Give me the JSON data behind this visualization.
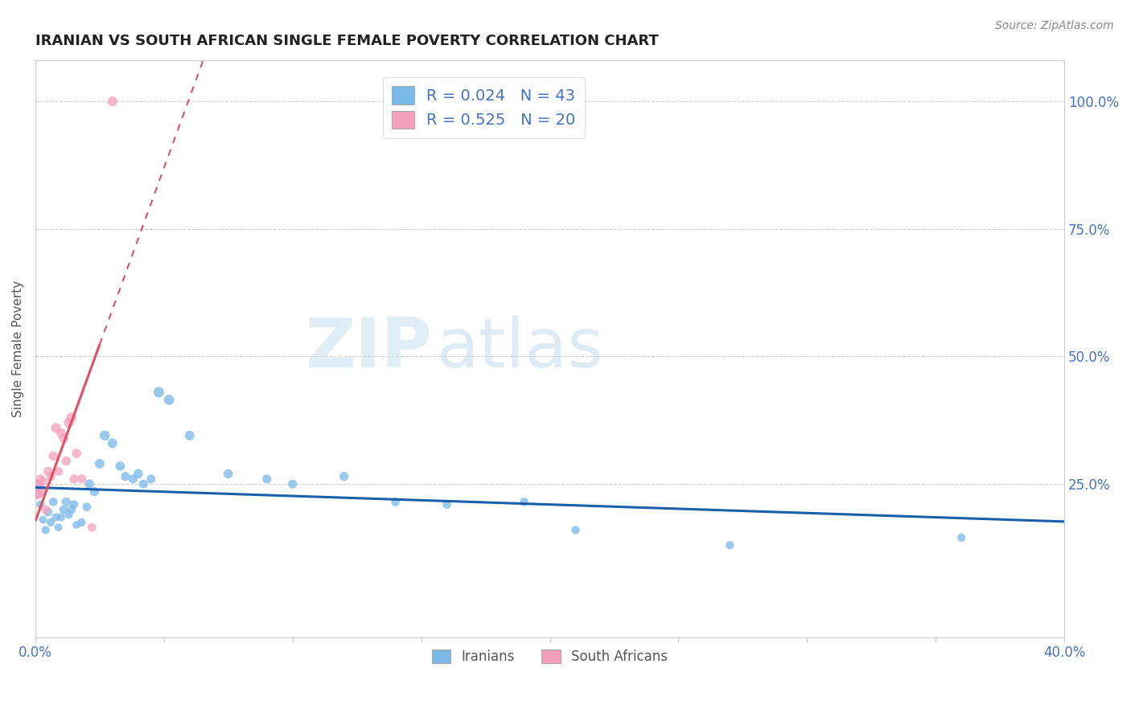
{
  "title": "IRANIAN VS SOUTH AFRICAN SINGLE FEMALE POVERTY CORRELATION CHART",
  "source": "Source: ZipAtlas.com",
  "ylabel": "Single Female Poverty",
  "iranians_color": "#7ab8e8",
  "south_africans_color": "#f4a0bc",
  "trend_iranian_color": "#1a5fa8",
  "trend_sa_color": "#e05060",
  "watermark_zip": "ZIP",
  "watermark_atlas": "atlas",
  "iranians": [
    [
      0.0,
      0.245
    ],
    [
      0.001,
      0.23
    ],
    [
      0.002,
      0.21
    ],
    [
      0.003,
      0.18
    ],
    [
      0.004,
      0.16
    ],
    [
      0.005,
      0.195
    ],
    [
      0.006,
      0.175
    ],
    [
      0.007,
      0.215
    ],
    [
      0.008,
      0.185
    ],
    [
      0.009,
      0.165
    ],
    [
      0.01,
      0.185
    ],
    [
      0.011,
      0.2
    ],
    [
      0.012,
      0.215
    ],
    [
      0.013,
      0.19
    ],
    [
      0.014,
      0.2
    ],
    [
      0.015,
      0.21
    ],
    [
      0.016,
      0.17
    ],
    [
      0.018,
      0.175
    ],
    [
      0.02,
      0.205
    ],
    [
      0.021,
      0.25
    ],
    [
      0.023,
      0.235
    ],
    [
      0.025,
      0.29
    ],
    [
      0.027,
      0.345
    ],
    [
      0.03,
      0.33
    ],
    [
      0.033,
      0.285
    ],
    [
      0.035,
      0.265
    ],
    [
      0.038,
      0.26
    ],
    [
      0.04,
      0.27
    ],
    [
      0.042,
      0.25
    ],
    [
      0.045,
      0.26
    ],
    [
      0.048,
      0.43
    ],
    [
      0.052,
      0.415
    ],
    [
      0.06,
      0.345
    ],
    [
      0.075,
      0.27
    ],
    [
      0.09,
      0.26
    ],
    [
      0.1,
      0.25
    ],
    [
      0.12,
      0.265
    ],
    [
      0.14,
      0.215
    ],
    [
      0.16,
      0.21
    ],
    [
      0.19,
      0.215
    ],
    [
      0.21,
      0.16
    ],
    [
      0.27,
      0.13
    ],
    [
      0.36,
      0.145
    ]
  ],
  "south_africans": [
    [
      0.0,
      0.24
    ],
    [
      0.001,
      0.23
    ],
    [
      0.002,
      0.26
    ],
    [
      0.003,
      0.255
    ],
    [
      0.004,
      0.2
    ],
    [
      0.005,
      0.275
    ],
    [
      0.006,
      0.265
    ],
    [
      0.007,
      0.305
    ],
    [
      0.008,
      0.36
    ],
    [
      0.009,
      0.275
    ],
    [
      0.01,
      0.35
    ],
    [
      0.011,
      0.34
    ],
    [
      0.012,
      0.295
    ],
    [
      0.013,
      0.37
    ],
    [
      0.014,
      0.38
    ],
    [
      0.015,
      0.26
    ],
    [
      0.016,
      0.31
    ],
    [
      0.018,
      0.26
    ],
    [
      0.022,
      0.165
    ],
    [
      0.03,
      1.0
    ]
  ],
  "iran_sizes": [
    180,
    60,
    55,
    50,
    55,
    60,
    55,
    60,
    55,
    50,
    55,
    60,
    65,
    55,
    60,
    60,
    50,
    55,
    60,
    70,
    65,
    75,
    80,
    75,
    70,
    65,
    65,
    70,
    65,
    65,
    90,
    85,
    75,
    70,
    65,
    65,
    65,
    60,
    60,
    60,
    55,
    55,
    55
  ],
  "sa_sizes": [
    320,
    70,
    65,
    65,
    65,
    70,
    65,
    70,
    80,
    65,
    75,
    75,
    70,
    80,
    85,
    65,
    70,
    65,
    60,
    80
  ],
  "xmin": 0.0,
  "xmax": 0.4,
  "ymin": -0.05,
  "ymax": 1.08,
  "ytick_vals": [
    0.25,
    0.5,
    0.75,
    1.0
  ],
  "ytick_labels": [
    "25.0%",
    "50.0%",
    "75.0%",
    "100.0%"
  ],
  "legend_r1": "R = 0.024",
  "legend_n1": "N = 43",
  "legend_r2": "R = 0.525",
  "legend_n2": "N = 20",
  "legend2_label1": "Iranians",
  "legend2_label2": "South Africans",
  "title_color": "#222222",
  "axis_label_color": "#4472c4",
  "legend_text_color": "#4472c4",
  "source_color": "#888888",
  "grid_color": "#cccccc"
}
